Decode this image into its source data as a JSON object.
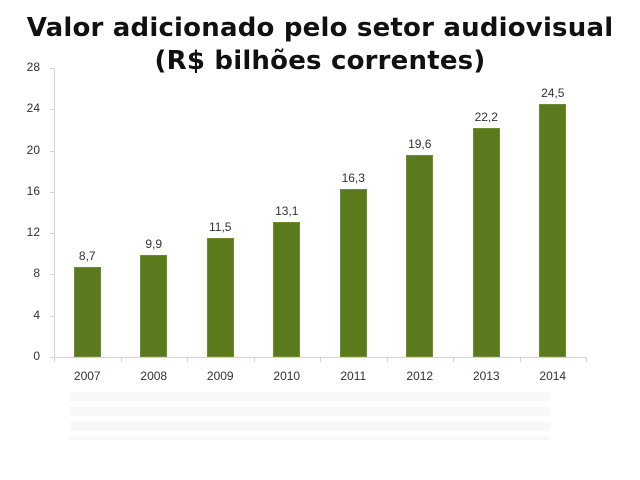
{
  "title": {
    "line1": "Valor adicionado pelo setor audiovisual",
    "line2": "(R$ bilhões correntes)"
  },
  "colors": {
    "bar": "#5b7a1e",
    "axis": "#d4d4d4",
    "text": "#333333"
  },
  "y_axis": {
    "ticks": [
      "0",
      "4",
      "8",
      "12",
      "16",
      "20",
      "24",
      "28"
    ]
  },
  "x_axis": {
    "ticks": [
      "2007",
      "2008",
      "2009",
      "2010",
      "2011",
      "2012",
      "2013",
      "2014"
    ]
  },
  "bars": [
    {
      "year": "2007",
      "label": "8,7"
    },
    {
      "year": "2008",
      "label": "9,9"
    },
    {
      "year": "2009",
      "label": "11,5"
    },
    {
      "year": "2010",
      "label": "13,1"
    },
    {
      "year": "2011",
      "label": "16,3"
    },
    {
      "year": "2012",
      "label": "19,6"
    },
    {
      "year": "2013",
      "label": "22,2"
    },
    {
      "year": "2014",
      "label": "24,5"
    }
  ],
  "chart_data": {
    "type": "bar",
    "title": "Valor adicionado pelo setor audiovisual (R$ bilhões correntes)",
    "categories": [
      "2007",
      "2008",
      "2009",
      "2010",
      "2011",
      "2012",
      "2013",
      "2014"
    ],
    "values": [
      8.7,
      9.9,
      11.5,
      13.1,
      16.3,
      19.6,
      22.2,
      24.5
    ],
    "data_labels": [
      "8,7",
      "9,9",
      "11,5",
      "13,1",
      "16,3",
      "19,6",
      "22,2",
      "24,5"
    ],
    "xlabel": "",
    "ylabel": "",
    "ylim": [
      0,
      28
    ],
    "yticks": [
      0,
      4,
      8,
      12,
      16,
      20,
      24,
      28
    ],
    "grid": false,
    "legend": null,
    "series_color": "#5b7a1e"
  }
}
